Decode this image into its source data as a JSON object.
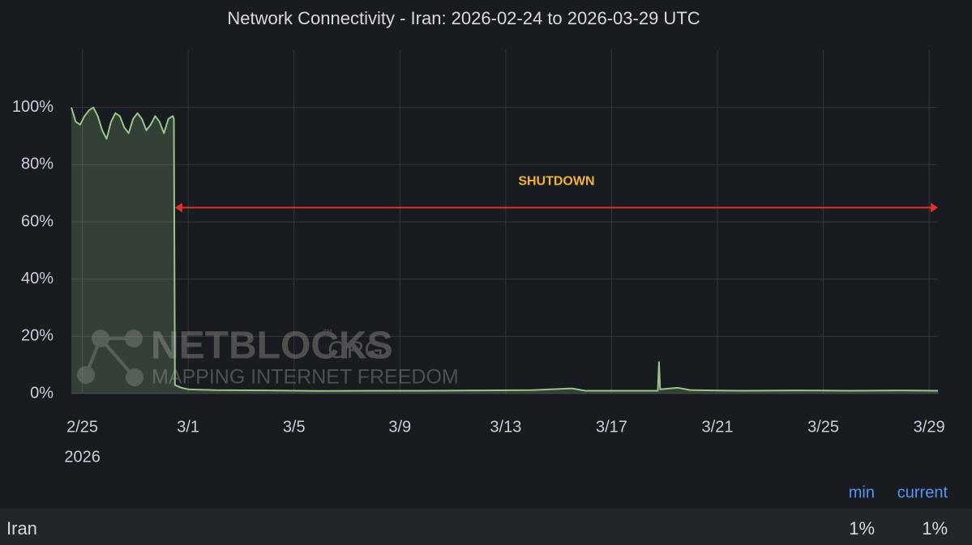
{
  "chart_data": {
    "type": "line",
    "title": "Network Connectivity - Iran: 2026-02-24 to 2026-03-29 UTC",
    "x": [
      "2026-02-24T14:00Z",
      "2026-02-24T18:00Z",
      "2026-02-24T22:00Z",
      "2026-02-25T02:00Z",
      "2026-02-25T06:00Z",
      "2026-02-25T10:00Z",
      "2026-02-25T14:00Z",
      "2026-02-25T18:00Z",
      "2026-02-25T22:00Z",
      "2026-02-26T02:00Z",
      "2026-02-26T06:00Z",
      "2026-02-26T10:00Z",
      "2026-02-26T14:00Z",
      "2026-02-26T18:00Z",
      "2026-02-26T22:00Z",
      "2026-02-27T02:00Z",
      "2026-02-27T06:00Z",
      "2026-02-27T10:00Z",
      "2026-02-27T14:00Z",
      "2026-02-27T18:00Z",
      "2026-02-27T22:00Z",
      "2026-02-28T02:00Z",
      "2026-02-28T06:00Z",
      "2026-02-28T10:00Z",
      "2026-02-28T11:00Z",
      "2026-02-28T12:00Z",
      "2026-02-28T18:00Z",
      "2026-03-01T00:00Z",
      "2026-03-02T00:00Z",
      "2026-03-04T00:00Z",
      "2026-03-06T00:00Z",
      "2026-03-08T00:00Z",
      "2026-03-10T00:00Z",
      "2026-03-12T00:00Z",
      "2026-03-14T00:00Z",
      "2026-03-15T12:00Z",
      "2026-03-16T00:00Z",
      "2026-03-18T18:00Z",
      "2026-03-18T19:00Z",
      "2026-03-18T20:00Z",
      "2026-03-19T12:00Z",
      "2026-03-20T00:00Z",
      "2026-03-22T00:00Z",
      "2026-03-24T00:00Z",
      "2026-03-26T00:00Z",
      "2026-03-28T00:00Z",
      "2026-03-29T08:00Z"
    ],
    "series": [
      {
        "name": "Iran",
        "color": "#9ac48a",
        "values": [
          100,
          95,
          94,
          97,
          99,
          100,
          97,
          92,
          89,
          95,
          98,
          97,
          93,
          91,
          96,
          98,
          96,
          92,
          94,
          97,
          95,
          91,
          96,
          97,
          96,
          3,
          2,
          1.5,
          1.2,
          1.1,
          0.9,
          1,
          1,
          1.1,
          1.2,
          1.8,
          1,
          1,
          11,
          1.5,
          2,
          1.2,
          1,
          1.1,
          1,
          1.1,
          1
        ]
      }
    ],
    "xlim": [
      "2026-02-24T14:00Z",
      "2026-03-29T08:00Z"
    ],
    "xticks": [
      {
        "value": "2026-02-25T00:00Z",
        "label": "2/25"
      },
      {
        "value": "2026-03-01T00:00Z",
        "label": "3/1"
      },
      {
        "value": "2026-03-05T00:00Z",
        "label": "3/5"
      },
      {
        "value": "2026-03-09T00:00Z",
        "label": "3/9"
      },
      {
        "value": "2026-03-13T00:00Z",
        "label": "3/13"
      },
      {
        "value": "2026-03-17T00:00Z",
        "label": "3/17"
      },
      {
        "value": "2026-03-21T00:00Z",
        "label": "3/21"
      },
      {
        "value": "2026-03-25T00:00Z",
        "label": "3/25"
      },
      {
        "value": "2026-03-29T00:00Z",
        "label": "3/29"
      }
    ],
    "x_year_label": "2026",
    "ylim": [
      0,
      120
    ],
    "yticks": [
      {
        "value": 0,
        "label": "0%"
      },
      {
        "value": 20,
        "label": "20%"
      },
      {
        "value": 40,
        "label": "40%"
      },
      {
        "value": 60,
        "label": "60%"
      },
      {
        "value": 80,
        "label": "80%"
      },
      {
        "value": 100,
        "label": "100%"
      }
    ],
    "grid": true,
    "annotations": [
      {
        "text": "SHUTDOWN",
        "x_start": "2026-02-28T12:00Z",
        "x_end": "2026-03-29T08:00Z",
        "y": 65,
        "color": "#e02f2f",
        "text_color": "#f2b23b"
      }
    ],
    "legend": {
      "headers": [
        "min",
        "current"
      ],
      "values": [
        "1%",
        "1%"
      ]
    },
    "watermark": {
      "name": "NETBLOCKS",
      "tm": "™",
      "suffix": ".ORG",
      "tagline": "MAPPING INTERNET FREEDOM"
    }
  }
}
